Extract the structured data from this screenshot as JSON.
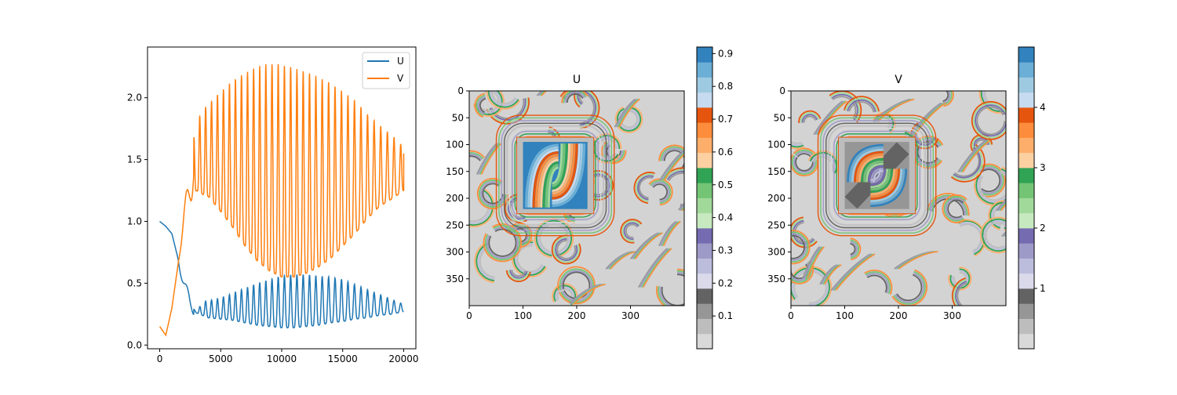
{
  "chart_data": [
    {
      "type": "line",
      "title": "",
      "xlabel": "",
      "ylabel": "",
      "xlim": [
        -1000,
        21000
      ],
      "ylim": [
        -0.03,
        2.41
      ],
      "x_ticks": [
        0,
        5000,
        10000,
        15000,
        20000
      ],
      "x_tick_labels": [
        "0",
        "5000",
        "10000",
        "15000",
        "20000"
      ],
      "y_ticks": [
        0.0,
        0.5,
        1.0,
        1.5,
        2.0
      ],
      "y_tick_labels": [
        "0.0",
        "0.5",
        "1.0",
        "1.5",
        "2.0"
      ],
      "grid": false,
      "legend": "top-right",
      "series": [
        {
          "name": "U",
          "color": "#1f77b4",
          "envelope": {
            "x": [
              0,
              500,
              1000,
              1500,
              2000,
              2500,
              3000,
              3500,
              4000,
              5000,
              6000,
              7000,
              8000,
              9000,
              10000,
              11000,
              12000,
              13000,
              14000,
              15000,
              16000,
              17000,
              18000,
              19000,
              20000
            ],
            "low": [
              1.0,
              0.96,
              0.9,
              0.7,
              0.5,
              0.34,
              0.26,
              0.24,
              0.22,
              0.21,
              0.2,
              0.18,
              0.16,
              0.15,
              0.14,
              0.14,
              0.15,
              0.16,
              0.18,
              0.19,
              0.21,
              0.22,
              0.24,
              0.25,
              0.27
            ],
            "high": [
              1.0,
              0.96,
              0.9,
              0.7,
              0.5,
              0.34,
              0.26,
              0.35,
              0.36,
              0.38,
              0.42,
              0.46,
              0.5,
              0.53,
              0.56,
              0.57,
              0.57,
              0.56,
              0.55,
              0.53,
              0.49,
              0.45,
              0.41,
              0.37,
              0.33
            ]
          }
        },
        {
          "name": "V",
          "color": "#ff7f0e",
          "envelope": {
            "x": [
              0,
              500,
              1000,
              1500,
              2000,
              2500,
              3000,
              3500,
              4000,
              5000,
              6000,
              7000,
              8000,
              9000,
              10000,
              11000,
              12000,
              13000,
              14000,
              15000,
              16000,
              17000,
              18000,
              19000,
              20000
            ],
            "low": [
              0.15,
              0.08,
              0.3,
              0.65,
              0.95,
              1.15,
              1.25,
              1.22,
              1.2,
              1.08,
              0.95,
              0.8,
              0.68,
              0.6,
              0.55,
              0.55,
              0.58,
              0.63,
              0.7,
              0.8,
              0.9,
              1.02,
              1.12,
              1.18,
              1.25
            ],
            "high": [
              0.15,
              0.08,
              0.3,
              0.65,
              1.1,
              1.5,
              1.8,
              1.9,
              1.95,
              2.05,
              2.14,
              2.2,
              2.25,
              2.28,
              2.27,
              2.24,
              2.21,
              2.17,
              2.12,
              2.05,
              1.98,
              1.87,
              1.78,
              1.7,
              1.6
            ]
          },
          "end_value": 1.55
        }
      ]
    },
    {
      "type": "heatmap",
      "title": "U",
      "xlabel": "",
      "ylabel": "",
      "xlim": [
        0,
        400
      ],
      "ylim": [
        400,
        0
      ],
      "x_ticks": [
        0,
        100,
        200,
        300
      ],
      "x_tick_labels": [
        "0",
        "100",
        "200",
        "300"
      ],
      "y_ticks": [
        0,
        50,
        100,
        150,
        200,
        250,
        300,
        350
      ],
      "y_tick_labels": [
        "0",
        "50",
        "100",
        "150",
        "200",
        "250",
        "300",
        "350"
      ],
      "colorbar": {
        "range": [
          0.0,
          0.92
        ],
        "ticks": [
          0.1,
          0.2,
          0.3,
          0.4,
          0.5,
          0.6,
          0.7,
          0.8,
          0.9
        ],
        "tick_labels": [
          "0.1",
          "0.2",
          "0.3",
          "0.4",
          "0.5",
          "0.6",
          "0.7",
          "0.8",
          "0.9"
        ],
        "colors": [
          "#d9d9d9",
          "#bdbdbd",
          "#969696",
          "#636363",
          "#dadaeb",
          "#bcbddc",
          "#9e9ac8",
          "#756bb1",
          "#c7e9c0",
          "#a1d99b",
          "#74c476",
          "#31a354",
          "#fdd0a2",
          "#fdae6b",
          "#fd8d3c",
          "#e6550d",
          "#c6dbef",
          "#9ecae1",
          "#6baed6",
          "#3182bd"
        ]
      },
      "center_square": {
        "x": [
          100,
          220
        ],
        "y": [
          95,
          220
        ]
      }
    },
    {
      "type": "heatmap",
      "title": "V",
      "xlabel": "",
      "ylabel": "",
      "xlim": [
        0,
        400
      ],
      "ylim": [
        400,
        0
      ],
      "x_ticks": [
        0,
        100,
        200,
        300
      ],
      "x_tick_labels": [
        "0",
        "100",
        "200",
        "300"
      ],
      "y_ticks": [
        0,
        50,
        100,
        150,
        200,
        250,
        300,
        350
      ],
      "y_tick_labels": [
        "0",
        "50",
        "100",
        "150",
        "200",
        "250",
        "300",
        "350"
      ],
      "colorbar": {
        "range": [
          0.0,
          5.0
        ],
        "ticks": [
          1,
          2,
          3,
          4
        ],
        "tick_labels": [
          "1",
          "2",
          "3",
          "4"
        ],
        "colors": [
          "#d9d9d9",
          "#bdbdbd",
          "#969696",
          "#636363",
          "#dadaeb",
          "#bcbddc",
          "#9e9ac8",
          "#756bb1",
          "#c7e9c0",
          "#a1d99b",
          "#74c476",
          "#31a354",
          "#fdd0a2",
          "#fdae6b",
          "#fd8d3c",
          "#e6550d",
          "#c6dbef",
          "#9ecae1",
          "#6baed6",
          "#3182bd"
        ]
      },
      "center_square": {
        "x": [
          100,
          220
        ],
        "y": [
          95,
          220
        ]
      }
    }
  ]
}
